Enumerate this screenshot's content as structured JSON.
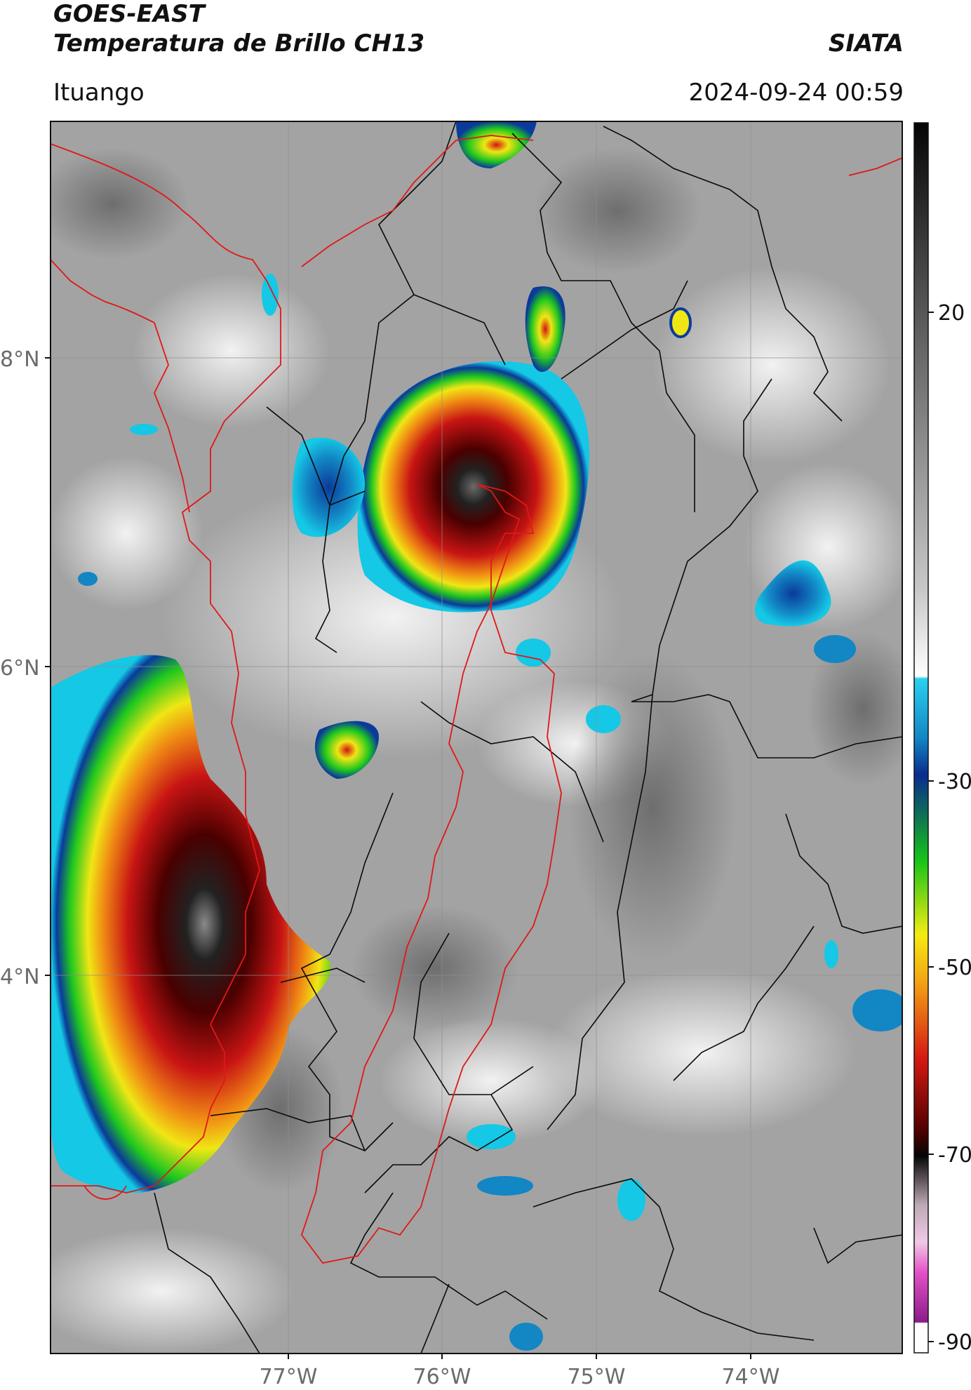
{
  "header": {
    "satellite": "GOES-EAST",
    "product": "Temperatura de Brillo CH13",
    "agency": "SIATA",
    "region": "Ituango",
    "timestamp": "2024-09-24 00:59"
  },
  "map": {
    "latitude_labels": [
      "8°N",
      "6°N",
      "4°N"
    ],
    "longitude_labels": [
      "77°W",
      "76°W",
      "75°W",
      "74°W"
    ]
  },
  "colorbar": {
    "tick_labels": [
      "20",
      "-30",
      "-50",
      "-70",
      "-90"
    ],
    "colors": {
      "white": "#ffffff",
      "light_gray": "#c8c8c8",
      "dark_gray": "#3a3a3a",
      "cyan": "#14c8e6",
      "blue": "#0a3a9a",
      "green": "#1ec81e",
      "yellow": "#f0e614",
      "orange": "#f08c14",
      "red": "#d21414",
      "dark_red": "#4a0000",
      "black": "#0a0a0a",
      "pink": "#e650c8",
      "purple": "#8c1e8c"
    }
  }
}
